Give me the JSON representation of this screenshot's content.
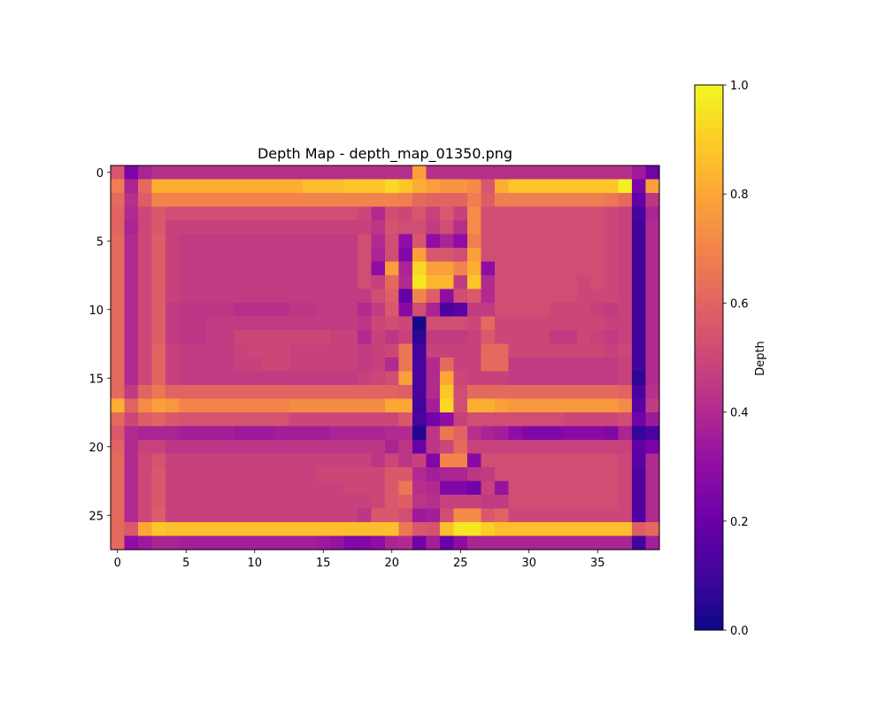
{
  "chart_data": {
    "type": "heatmap",
    "title": "Depth Map - depth_map_01350.png",
    "colormap": "plasma",
    "colorbar": {
      "label": "Depth",
      "range": [
        0,
        1
      ],
      "ticks": [
        0.0,
        0.2,
        0.4,
        0.6,
        0.8,
        1.0
      ],
      "tick_labels": [
        "0.0",
        "0.2",
        "0.4",
        "0.6",
        "0.8",
        "1.0"
      ]
    },
    "x_ticks": [
      0,
      5,
      10,
      15,
      20,
      25,
      30,
      35
    ],
    "y_ticks": [
      0,
      5,
      10,
      15,
      20,
      25
    ],
    "n_cols": 40,
    "n_rows": 28,
    "values": [
      [
        0.55,
        0.25,
        0.38,
        0.42,
        0.42,
        0.42,
        0.42,
        0.42,
        0.42,
        0.42,
        0.42,
        0.42,
        0.42,
        0.42,
        0.42,
        0.42,
        0.42,
        0.42,
        0.42,
        0.42,
        0.42,
        0.42,
        0.78,
        0.42,
        0.42,
        0.42,
        0.42,
        0.42,
        0.42,
        0.42,
        0.42,
        0.42,
        0.42,
        0.42,
        0.42,
        0.42,
        0.42,
        0.42,
        0.35,
        0.22
      ],
      [
        0.68,
        0.38,
        0.62,
        0.82,
        0.82,
        0.82,
        0.82,
        0.82,
        0.82,
        0.82,
        0.82,
        0.82,
        0.82,
        0.82,
        0.86,
        0.86,
        0.86,
        0.88,
        0.88,
        0.88,
        0.92,
        0.88,
        0.82,
        0.78,
        0.75,
        0.75,
        0.72,
        0.55,
        0.82,
        0.88,
        0.88,
        0.88,
        0.88,
        0.88,
        0.88,
        0.88,
        0.88,
        0.98,
        0.25,
        0.78
      ],
      [
        0.62,
        0.42,
        0.58,
        0.7,
        0.7,
        0.7,
        0.7,
        0.7,
        0.7,
        0.7,
        0.7,
        0.7,
        0.7,
        0.7,
        0.7,
        0.7,
        0.7,
        0.7,
        0.7,
        0.7,
        0.7,
        0.68,
        0.62,
        0.6,
        0.6,
        0.6,
        0.68,
        0.58,
        0.68,
        0.68,
        0.68,
        0.68,
        0.68,
        0.68,
        0.68,
        0.68,
        0.66,
        0.62,
        0.18,
        0.44
      ],
      [
        0.6,
        0.4,
        0.5,
        0.56,
        0.52,
        0.52,
        0.52,
        0.52,
        0.52,
        0.52,
        0.52,
        0.52,
        0.52,
        0.52,
        0.52,
        0.52,
        0.52,
        0.52,
        0.5,
        0.4,
        0.52,
        0.5,
        0.55,
        0.48,
        0.56,
        0.48,
        0.72,
        0.52,
        0.52,
        0.52,
        0.52,
        0.52,
        0.52,
        0.52,
        0.52,
        0.52,
        0.5,
        0.48,
        0.12,
        0.38
      ],
      [
        0.6,
        0.38,
        0.5,
        0.56,
        0.48,
        0.48,
        0.48,
        0.48,
        0.48,
        0.48,
        0.48,
        0.48,
        0.48,
        0.48,
        0.48,
        0.48,
        0.48,
        0.48,
        0.48,
        0.44,
        0.54,
        0.52,
        0.52,
        0.46,
        0.52,
        0.42,
        0.72,
        0.52,
        0.52,
        0.52,
        0.52,
        0.52,
        0.52,
        0.52,
        0.52,
        0.52,
        0.5,
        0.48,
        0.1,
        0.4
      ],
      [
        0.62,
        0.4,
        0.5,
        0.58,
        0.48,
        0.46,
        0.46,
        0.46,
        0.46,
        0.46,
        0.46,
        0.46,
        0.46,
        0.46,
        0.46,
        0.46,
        0.46,
        0.46,
        0.52,
        0.4,
        0.52,
        0.3,
        0.55,
        0.3,
        0.38,
        0.3,
        0.68,
        0.52,
        0.52,
        0.52,
        0.52,
        0.52,
        0.52,
        0.52,
        0.52,
        0.52,
        0.5,
        0.48,
        0.1,
        0.4
      ],
      [
        0.62,
        0.4,
        0.5,
        0.58,
        0.48,
        0.46,
        0.46,
        0.46,
        0.46,
        0.46,
        0.46,
        0.46,
        0.46,
        0.46,
        0.46,
        0.46,
        0.46,
        0.46,
        0.52,
        0.38,
        0.52,
        0.26,
        0.78,
        0.55,
        0.55,
        0.52,
        0.78,
        0.52,
        0.52,
        0.52,
        0.52,
        0.52,
        0.52,
        0.52,
        0.52,
        0.52,
        0.5,
        0.48,
        0.1,
        0.4
      ],
      [
        0.62,
        0.4,
        0.5,
        0.58,
        0.48,
        0.46,
        0.46,
        0.46,
        0.46,
        0.46,
        0.46,
        0.46,
        0.46,
        0.46,
        0.46,
        0.46,
        0.46,
        0.46,
        0.52,
        0.3,
        0.78,
        0.38,
        0.92,
        0.78,
        0.78,
        0.7,
        0.82,
        0.3,
        0.52,
        0.52,
        0.52,
        0.52,
        0.52,
        0.52,
        0.52,
        0.52,
        0.5,
        0.48,
        0.1,
        0.4
      ],
      [
        0.62,
        0.4,
        0.5,
        0.58,
        0.48,
        0.46,
        0.46,
        0.46,
        0.46,
        0.46,
        0.46,
        0.46,
        0.46,
        0.46,
        0.46,
        0.46,
        0.46,
        0.46,
        0.52,
        0.48,
        0.62,
        0.4,
        0.96,
        0.84,
        0.84,
        0.46,
        0.88,
        0.4,
        0.52,
        0.52,
        0.52,
        0.52,
        0.52,
        0.52,
        0.5,
        0.52,
        0.5,
        0.48,
        0.1,
        0.4
      ],
      [
        0.62,
        0.4,
        0.5,
        0.58,
        0.48,
        0.46,
        0.46,
        0.46,
        0.46,
        0.46,
        0.46,
        0.46,
        0.46,
        0.46,
        0.46,
        0.46,
        0.46,
        0.46,
        0.46,
        0.52,
        0.58,
        0.18,
        0.7,
        0.58,
        0.3,
        0.52,
        0.56,
        0.4,
        0.52,
        0.52,
        0.52,
        0.52,
        0.52,
        0.52,
        0.5,
        0.5,
        0.5,
        0.48,
        0.1,
        0.4
      ],
      [
        0.62,
        0.4,
        0.5,
        0.58,
        0.46,
        0.44,
        0.44,
        0.44,
        0.44,
        0.42,
        0.42,
        0.42,
        0.42,
        0.44,
        0.44,
        0.46,
        0.46,
        0.46,
        0.4,
        0.46,
        0.56,
        0.28,
        0.52,
        0.38,
        0.12,
        0.16,
        0.46,
        0.46,
        0.52,
        0.52,
        0.52,
        0.52,
        0.5,
        0.5,
        0.5,
        0.48,
        0.46,
        0.48,
        0.1,
        0.4
      ],
      [
        0.62,
        0.4,
        0.5,
        0.58,
        0.46,
        0.44,
        0.44,
        0.46,
        0.46,
        0.46,
        0.46,
        0.46,
        0.46,
        0.46,
        0.46,
        0.46,
        0.46,
        0.46,
        0.44,
        0.5,
        0.52,
        0.5,
        0.02,
        0.52,
        0.52,
        0.52,
        0.5,
        0.62,
        0.5,
        0.5,
        0.5,
        0.5,
        0.5,
        0.5,
        0.5,
        0.5,
        0.48,
        0.48,
        0.1,
        0.4
      ],
      [
        0.62,
        0.4,
        0.5,
        0.58,
        0.46,
        0.44,
        0.44,
        0.46,
        0.46,
        0.5,
        0.5,
        0.5,
        0.5,
        0.5,
        0.5,
        0.5,
        0.48,
        0.48,
        0.4,
        0.48,
        0.44,
        0.48,
        0.06,
        0.46,
        0.46,
        0.46,
        0.48,
        0.56,
        0.5,
        0.5,
        0.5,
        0.5,
        0.46,
        0.46,
        0.5,
        0.48,
        0.46,
        0.48,
        0.1,
        0.4
      ],
      [
        0.62,
        0.4,
        0.5,
        0.6,
        0.48,
        0.46,
        0.46,
        0.46,
        0.46,
        0.48,
        0.5,
        0.5,
        0.5,
        0.48,
        0.48,
        0.48,
        0.48,
        0.48,
        0.46,
        0.48,
        0.5,
        0.66,
        0.1,
        0.48,
        0.48,
        0.48,
        0.48,
        0.62,
        0.62,
        0.5,
        0.5,
        0.5,
        0.5,
        0.5,
        0.5,
        0.5,
        0.48,
        0.5,
        0.1,
        0.4
      ],
      [
        0.62,
        0.4,
        0.5,
        0.6,
        0.48,
        0.46,
        0.46,
        0.46,
        0.46,
        0.48,
        0.48,
        0.5,
        0.5,
        0.48,
        0.48,
        0.48,
        0.48,
        0.48,
        0.46,
        0.48,
        0.4,
        0.66,
        0.12,
        0.4,
        0.62,
        0.48,
        0.48,
        0.62,
        0.62,
        0.46,
        0.46,
        0.46,
        0.46,
        0.46,
        0.46,
        0.46,
        0.46,
        0.48,
        0.1,
        0.4
      ],
      [
        0.62,
        0.4,
        0.5,
        0.6,
        0.48,
        0.46,
        0.46,
        0.46,
        0.46,
        0.46,
        0.46,
        0.46,
        0.46,
        0.46,
        0.46,
        0.46,
        0.46,
        0.46,
        0.48,
        0.5,
        0.52,
        0.78,
        0.12,
        0.4,
        0.8,
        0.5,
        0.48,
        0.48,
        0.48,
        0.46,
        0.46,
        0.46,
        0.46,
        0.46,
        0.46,
        0.46,
        0.46,
        0.48,
        0.06,
        0.4
      ],
      [
        0.62,
        0.46,
        0.6,
        0.66,
        0.6,
        0.6,
        0.6,
        0.6,
        0.6,
        0.6,
        0.6,
        0.6,
        0.6,
        0.6,
        0.6,
        0.6,
        0.6,
        0.6,
        0.6,
        0.6,
        0.6,
        0.58,
        0.12,
        0.4,
        0.88,
        0.52,
        0.62,
        0.62,
        0.62,
        0.62,
        0.62,
        0.62,
        0.62,
        0.62,
        0.62,
        0.62,
        0.62,
        0.6,
        0.12,
        0.42
      ],
      [
        0.82,
        0.6,
        0.72,
        0.78,
        0.76,
        0.7,
        0.7,
        0.7,
        0.7,
        0.7,
        0.7,
        0.7,
        0.7,
        0.72,
        0.72,
        0.72,
        0.72,
        0.72,
        0.72,
        0.72,
        0.8,
        0.8,
        0.1,
        0.36,
        0.92,
        0.52,
        0.82,
        0.82,
        0.78,
        0.76,
        0.76,
        0.76,
        0.76,
        0.76,
        0.76,
        0.76,
        0.76,
        0.72,
        0.16,
        0.46
      ],
      [
        0.62,
        0.5,
        0.58,
        0.6,
        0.56,
        0.54,
        0.54,
        0.54,
        0.54,
        0.54,
        0.54,
        0.54,
        0.54,
        0.5,
        0.5,
        0.5,
        0.5,
        0.5,
        0.5,
        0.5,
        0.5,
        0.56,
        0.12,
        0.22,
        0.3,
        0.48,
        0.52,
        0.52,
        0.52,
        0.52,
        0.52,
        0.52,
        0.52,
        0.5,
        0.5,
        0.5,
        0.5,
        0.52,
        0.22,
        0.34
      ],
      [
        0.56,
        0.4,
        0.38,
        0.38,
        0.38,
        0.36,
        0.36,
        0.36,
        0.36,
        0.34,
        0.34,
        0.34,
        0.36,
        0.36,
        0.36,
        0.36,
        0.38,
        0.38,
        0.38,
        0.38,
        0.4,
        0.4,
        0.04,
        0.44,
        0.66,
        0.6,
        0.42,
        0.38,
        0.36,
        0.3,
        0.26,
        0.26,
        0.26,
        0.28,
        0.28,
        0.28,
        0.26,
        0.38,
        0.08,
        0.12
      ],
      [
        0.6,
        0.4,
        0.48,
        0.48,
        0.44,
        0.44,
        0.44,
        0.44,
        0.44,
        0.44,
        0.44,
        0.44,
        0.44,
        0.44,
        0.44,
        0.44,
        0.44,
        0.44,
        0.44,
        0.44,
        0.38,
        0.44,
        0.2,
        0.44,
        0.5,
        0.62,
        0.48,
        0.48,
        0.48,
        0.48,
        0.48,
        0.48,
        0.48,
        0.48,
        0.48,
        0.48,
        0.48,
        0.48,
        0.18,
        0.24
      ],
      [
        0.62,
        0.4,
        0.5,
        0.54,
        0.48,
        0.48,
        0.48,
        0.48,
        0.48,
        0.48,
        0.48,
        0.48,
        0.48,
        0.48,
        0.48,
        0.48,
        0.48,
        0.48,
        0.48,
        0.44,
        0.5,
        0.44,
        0.48,
        0.26,
        0.7,
        0.7,
        0.28,
        0.52,
        0.52,
        0.52,
        0.52,
        0.52,
        0.52,
        0.52,
        0.52,
        0.52,
        0.52,
        0.5,
        0.16,
        0.4
      ],
      [
        0.62,
        0.4,
        0.5,
        0.56,
        0.48,
        0.48,
        0.48,
        0.48,
        0.48,
        0.48,
        0.48,
        0.48,
        0.48,
        0.48,
        0.48,
        0.5,
        0.5,
        0.5,
        0.5,
        0.5,
        0.56,
        0.56,
        0.4,
        0.36,
        0.38,
        0.38,
        0.44,
        0.46,
        0.52,
        0.52,
        0.52,
        0.52,
        0.52,
        0.52,
        0.52,
        0.52,
        0.52,
        0.5,
        0.14,
        0.4
      ],
      [
        0.62,
        0.4,
        0.5,
        0.56,
        0.48,
        0.48,
        0.48,
        0.48,
        0.48,
        0.48,
        0.48,
        0.48,
        0.48,
        0.48,
        0.48,
        0.48,
        0.48,
        0.5,
        0.5,
        0.5,
        0.56,
        0.66,
        0.42,
        0.4,
        0.26,
        0.26,
        0.22,
        0.48,
        0.32,
        0.52,
        0.52,
        0.52,
        0.52,
        0.52,
        0.52,
        0.52,
        0.52,
        0.5,
        0.14,
        0.4
      ],
      [
        0.62,
        0.4,
        0.5,
        0.56,
        0.48,
        0.48,
        0.48,
        0.48,
        0.48,
        0.48,
        0.48,
        0.48,
        0.48,
        0.48,
        0.48,
        0.48,
        0.48,
        0.48,
        0.48,
        0.5,
        0.56,
        0.58,
        0.44,
        0.42,
        0.48,
        0.48,
        0.48,
        0.46,
        0.46,
        0.52,
        0.52,
        0.52,
        0.52,
        0.52,
        0.52,
        0.52,
        0.52,
        0.5,
        0.14,
        0.4
      ],
      [
        0.62,
        0.4,
        0.5,
        0.58,
        0.48,
        0.48,
        0.48,
        0.48,
        0.48,
        0.48,
        0.48,
        0.48,
        0.48,
        0.48,
        0.48,
        0.48,
        0.48,
        0.48,
        0.44,
        0.56,
        0.56,
        0.52,
        0.34,
        0.36,
        0.52,
        0.72,
        0.72,
        0.56,
        0.6,
        0.5,
        0.5,
        0.5,
        0.5,
        0.5,
        0.5,
        0.5,
        0.5,
        0.5,
        0.14,
        0.4
      ],
      [
        0.62,
        0.56,
        0.8,
        0.88,
        0.86,
        0.86,
        0.86,
        0.86,
        0.86,
        0.86,
        0.86,
        0.86,
        0.86,
        0.86,
        0.86,
        0.86,
        0.86,
        0.86,
        0.86,
        0.86,
        0.86,
        0.66,
        0.56,
        0.54,
        0.86,
        0.96,
        0.96,
        0.9,
        0.86,
        0.86,
        0.86,
        0.86,
        0.86,
        0.86,
        0.86,
        0.86,
        0.86,
        0.86,
        0.58,
        0.62
      ],
      [
        0.62,
        0.3,
        0.34,
        0.38,
        0.38,
        0.36,
        0.36,
        0.36,
        0.36,
        0.36,
        0.36,
        0.36,
        0.36,
        0.36,
        0.36,
        0.34,
        0.32,
        0.26,
        0.26,
        0.3,
        0.38,
        0.4,
        0.22,
        0.36,
        0.2,
        0.3,
        0.38,
        0.38,
        0.38,
        0.38,
        0.38,
        0.38,
        0.38,
        0.38,
        0.38,
        0.38,
        0.38,
        0.38,
        0.1,
        0.36
      ]
    ]
  }
}
